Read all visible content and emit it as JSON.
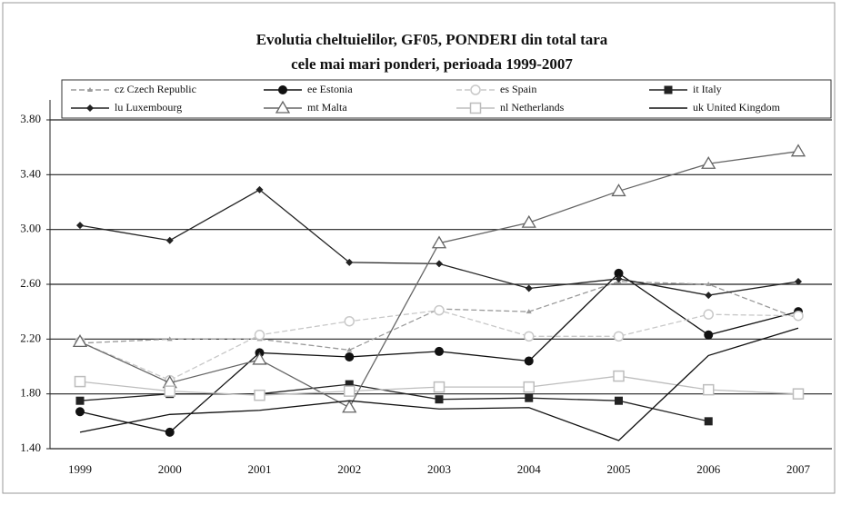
{
  "chart_data": {
    "type": "line",
    "title": "Evolutia cheltuielilor, GF05, PONDERI din total tara",
    "subtitle": "cele mai mari ponderi, perioada 1999-2007",
    "categories": [
      "1999",
      "2000",
      "2001",
      "2002",
      "2003",
      "2004",
      "2005",
      "2006",
      "2007"
    ],
    "ylim": [
      1.4,
      3.8
    ],
    "yticks": [
      {
        "value": 1.4,
        "label": "1.40"
      },
      {
        "value": 1.8,
        "label": "1.80"
      },
      {
        "value": 2.2,
        "label": "2.20"
      },
      {
        "value": 2.6,
        "label": "2.60"
      },
      {
        "value": 3.0,
        "label": "3.00"
      },
      {
        "value": 3.4,
        "label": "3.40"
      },
      {
        "value": 3.8,
        "label": "3.80"
      }
    ],
    "grid": true,
    "legend": "top",
    "series": [
      {
        "name": "cz Czech Republic",
        "color": "#9a9a9a",
        "marker": "small-triangle",
        "dash": true,
        "values": [
          2.17,
          2.2,
          2.2,
          2.12,
          2.42,
          2.4,
          2.62,
          2.6,
          2.35
        ]
      },
      {
        "name": "ee Estonia",
        "color": "#111111",
        "marker": "circle",
        "dash": false,
        "values": [
          1.67,
          1.52,
          2.1,
          2.07,
          2.11,
          2.04,
          2.68,
          2.23,
          2.4
        ]
      },
      {
        "name": "es Spain",
        "color": "#c8c8c8",
        "marker": "open-circle",
        "dash": true,
        "values": [
          2.18,
          1.9,
          2.23,
          2.33,
          2.41,
          2.22,
          2.22,
          2.38,
          2.37
        ]
      },
      {
        "name": "it Italy",
        "color": "#222222",
        "marker": "square",
        "dash": false,
        "values": [
          1.75,
          1.8,
          1.8,
          1.87,
          1.76,
          1.77,
          1.75,
          1.6,
          null
        ]
      },
      {
        "name": "lu Luxembourg",
        "color": "#222222",
        "marker": "diamond",
        "dash": false,
        "values": [
          3.03,
          2.92,
          3.29,
          2.76,
          2.75,
          2.57,
          2.64,
          2.52,
          2.62
        ]
      },
      {
        "name": "mt Malta",
        "color": "#666666",
        "marker": "triangle",
        "dash": false,
        "values": [
          2.18,
          1.88,
          2.05,
          1.7,
          2.9,
          3.05,
          3.28,
          3.48,
          3.57
        ]
      },
      {
        "name": "nl Netherlands",
        "color": "#bdbdbd",
        "marker": "open-square",
        "dash": false,
        "values": [
          1.89,
          1.82,
          1.79,
          1.82,
          1.85,
          1.85,
          1.93,
          1.83,
          1.8
        ]
      },
      {
        "name": "uk United Kingdom",
        "color": "#111111",
        "marker": "none",
        "dash": false,
        "values": [
          1.52,
          1.65,
          1.68,
          1.75,
          1.69,
          1.7,
          1.46,
          2.08,
          2.28
        ]
      }
    ]
  }
}
